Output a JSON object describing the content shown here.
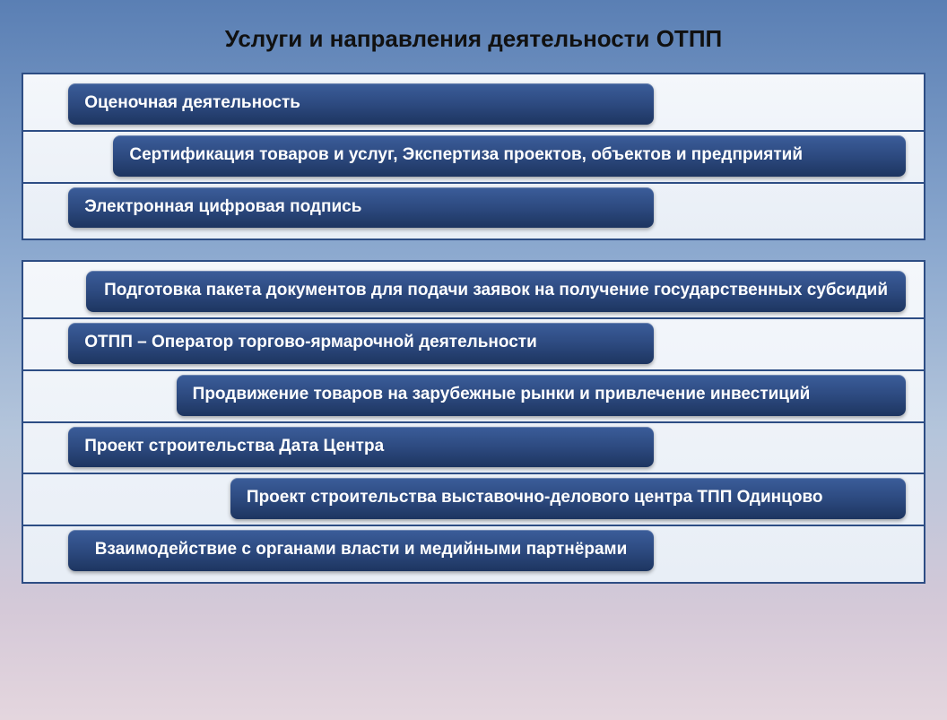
{
  "slide": {
    "title": "Услуги и направления деятельности ОТПП",
    "title_fontsize": 26,
    "title_color": "#111111",
    "background_gradient": [
      "#5a7fb4",
      "#8ca9cf",
      "#b4c5db",
      "#d5c9d8",
      "#e4d6de"
    ],
    "frame_border_color": "#2d4d84",
    "frame_bg_gradient": [
      "#f4f7fb",
      "#e8eef6"
    ],
    "pill_gradient": [
      "#3b5d9a",
      "#2d4a80",
      "#1d3560"
    ],
    "pill_text_color": "#ffffff",
    "pill_fontsize": 19,
    "pill_border_radius": 8
  },
  "groups": [
    {
      "rows": [
        {
          "text": "Оценочная деятельность",
          "left_pct": 5,
          "width_pct": 65,
          "tall": false
        },
        {
          "text": "Сертификация товаров и услуг, Экспертиза проектов, объектов и предприятий",
          "left_pct": 10,
          "width_pct": 88,
          "tall": false
        },
        {
          "text": "Электронная цифровая подпись",
          "left_pct": 5,
          "width_pct": 65,
          "tall": false
        }
      ]
    },
    {
      "rows": [
        {
          "text": "Подготовка пакета документов для подачи заявок на получение государственных субсидий",
          "left_pct": 7,
          "width_pct": 91,
          "tall": true
        },
        {
          "text": "ОТПП – Оператор торгово-ярмарочной деятельности",
          "left_pct": 5,
          "width_pct": 65,
          "tall": false
        },
        {
          "text": "Продвижение товаров на зарубежные рынки и привлечение инвестиций",
          "left_pct": 17,
          "width_pct": 81,
          "tall": false
        },
        {
          "text": "Проект строительства Дата Центра",
          "left_pct": 5,
          "width_pct": 65,
          "tall": false
        },
        {
          "text": "Проект строительства выставочно-делового центра ТПП Одинцово",
          "left_pct": 23,
          "width_pct": 75,
          "tall": false
        },
        {
          "text": "Взаимодействие с органами власти и медийными партнёрами",
          "left_pct": 5,
          "width_pct": 65,
          "tall": true
        }
      ]
    }
  ]
}
